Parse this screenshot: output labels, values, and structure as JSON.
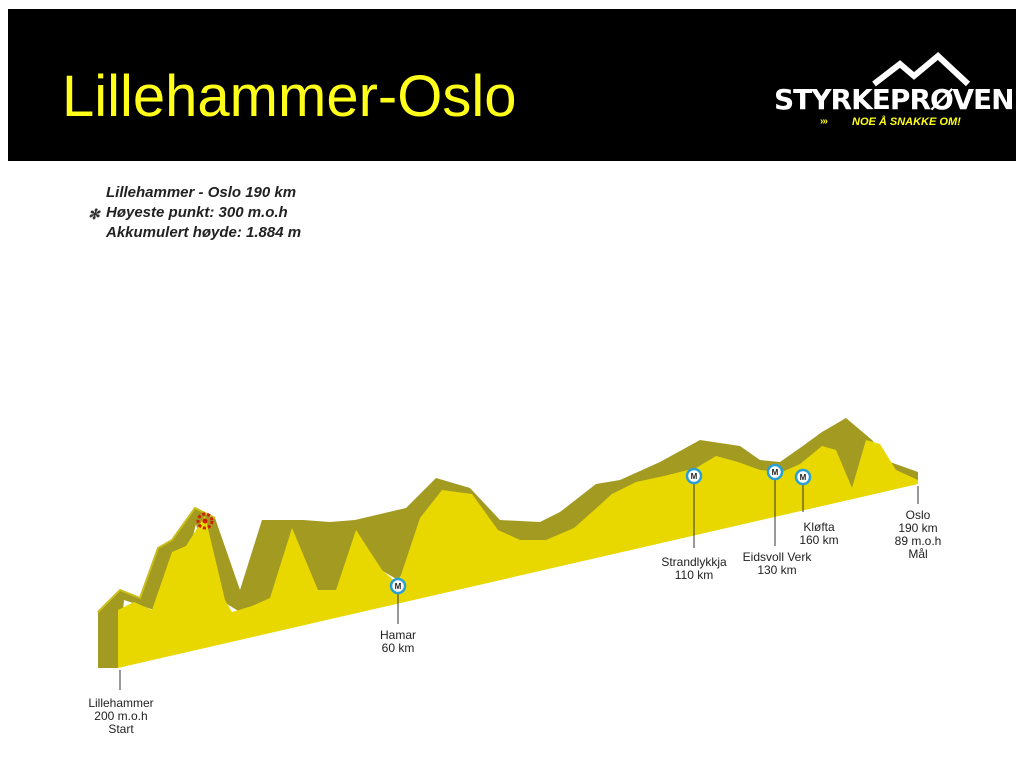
{
  "header": {
    "title": "Lillehammer-Oslo"
  },
  "logo": {
    "wordmark": "STYRKEPRØVEN",
    "arrows": "›››",
    "tagline": "NOE Å SNAKKE OM!"
  },
  "info": {
    "line1": "Lillehammer - Oslo 190 km",
    "star": "✻",
    "line2": "Høyeste punkt: 300 m.o.h",
    "line3": "Akkumulert høyde: 1.884 m"
  },
  "locations": [
    {
      "name": "Lillehammer",
      "detail1": "200 m.o.h",
      "detail2": "Start"
    },
    {
      "name": "Hamar",
      "detail1": "60 km",
      "detail2": ""
    },
    {
      "name": "Strandlykkja",
      "detail1": "110 km",
      "detail2": ""
    },
    {
      "name": "Eidsvoll Verk",
      "detail1": "130 km",
      "detail2": ""
    },
    {
      "name": "Kløfta",
      "detail1": "160 km",
      "detail2": ""
    },
    {
      "name": "Oslo",
      "detail1": "190 km",
      "detail2": "89 m.o.h",
      "detail3": "Mål"
    }
  ],
  "marker_letter": "M",
  "colors": {
    "header_bg": "#000000",
    "title": "#ffff1a",
    "profile_front": "#e8d800",
    "profile_side": "#a39a22",
    "profile_top": "#c9bd1a",
    "marker_ring": "#2a9fd6",
    "summit_marker": "#cc2200"
  }
}
